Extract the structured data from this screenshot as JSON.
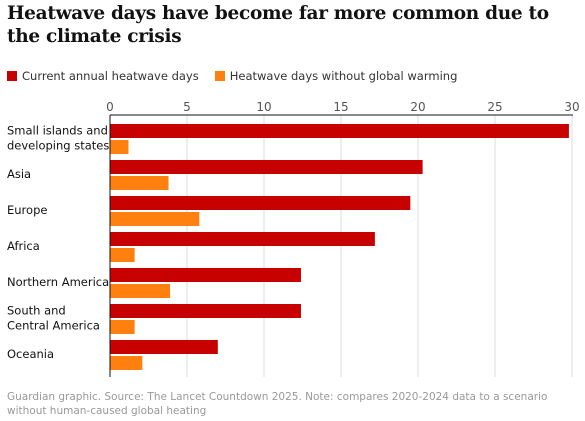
{
  "colors": {
    "current": "#c70000",
    "without": "#ff7f0f",
    "axis": "#121212",
    "grid": "#dcdcdc"
  },
  "chart_data": {
    "type": "bar",
    "orientation": "horizontal",
    "title": "Heatwave days have become far more common due to the climate crisis",
    "categories": [
      [
        "Small islands and",
        "developing states"
      ],
      [
        "Asia"
      ],
      [
        "Europe"
      ],
      [
        "Africa"
      ],
      [
        "Northern America"
      ],
      [
        "South and",
        "Central America"
      ],
      [
        "Oceania"
      ]
    ],
    "series": [
      {
        "name": "Current annual heatwave days",
        "values": [
          29.8,
          20.3,
          19.5,
          17.2,
          12.4,
          12.4,
          7.0
        ]
      },
      {
        "name": "Heatwave days without global warming",
        "values": [
          1.2,
          3.8,
          5.8,
          1.6,
          3.9,
          1.6,
          2.1
        ]
      }
    ],
    "x_ticks": [
      0,
      5,
      10,
      15,
      20,
      25,
      30
    ],
    "xlim": [
      0,
      30
    ],
    "grid": true,
    "legend_position": "top-left",
    "source": "Guardian graphic. Source: The Lancet Countdown 2025. Note: compares 2020-2024 data to a scenario without human-caused global heating"
  }
}
